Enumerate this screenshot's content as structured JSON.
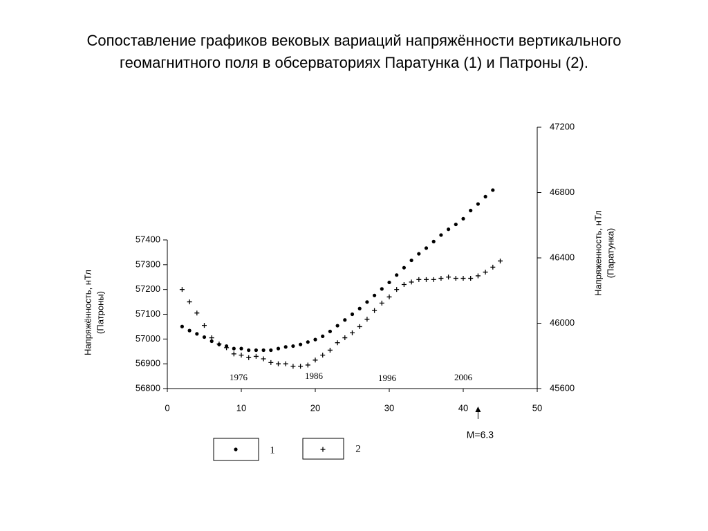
{
  "chart_data": {
    "type": "scatter",
    "title": [
      "Сопоставление графиков вековых вариаций напряжённости вертикального",
      "геомагнитного поля в обсерваториях Паратунка (1) и Патроны (2)."
    ],
    "ylabel": [
      "Напряжённость, нТл",
      "(Патроны)"
    ],
    "y2label": [
      "Напряженность, нТл",
      "(Паратунка)"
    ],
    "xlim": [
      0,
      50
    ],
    "xticks": [
      0,
      10,
      20,
      30,
      40,
      50
    ],
    "ylim": [
      56800,
      57400
    ],
    "yticks": [
      56800,
      56900,
      57000,
      57100,
      57200,
      57300,
      57400
    ],
    "y2lim": [
      45600,
      47200
    ],
    "y2ticks": [
      45600,
      46000,
      46400,
      46800,
      47200
    ],
    "annotations": [
      "1976",
      "1986",
      "1996",
      "2006"
    ],
    "event": {
      "label": "M=6.3",
      "x": 42
    },
    "series": [
      {
        "name": "1",
        "color": "#000000",
        "marker": "dot",
        "axis": "y2",
        "x": [
          2,
          3,
          4,
          5,
          6,
          7,
          8,
          9,
          10,
          11,
          12,
          13,
          14,
          15,
          16,
          17,
          18,
          19,
          20,
          21,
          22,
          23,
          24,
          25,
          26,
          27,
          28,
          29,
          30,
          31,
          32,
          33,
          34,
          35,
          36,
          37,
          38,
          39,
          40,
          41,
          42,
          43,
          44
        ],
        "values": [
          45980,
          45955,
          45935,
          45915,
          45890,
          45870,
          45860,
          45845,
          45845,
          45835,
          45835,
          45835,
          45835,
          45845,
          45855,
          45860,
          45870,
          45885,
          45900,
          45920,
          45950,
          45985,
          46020,
          46055,
          46090,
          46130,
          46170,
          46210,
          46250,
          46295,
          46340,
          46385,
          46425,
          46460,
          46500,
          46540,
          46575,
          46605,
          46640,
          46690,
          46730,
          46775,
          46815
        ]
      },
      {
        "name": "2",
        "color": "#000000",
        "marker": "plus",
        "x": [
          2,
          3,
          4,
          5,
          6,
          7,
          8,
          9,
          10,
          11,
          12,
          13,
          14,
          15,
          16,
          17,
          18,
          19,
          20,
          21,
          22,
          23,
          24,
          25,
          26,
          27,
          28,
          29,
          30,
          31,
          32,
          33,
          34,
          35,
          36,
          37,
          38,
          39,
          40,
          41,
          42,
          43,
          44,
          45
        ],
        "values": [
          57200,
          57150,
          57105,
          57055,
          57005,
          56980,
          56965,
          56940,
          56935,
          56925,
          56930,
          56920,
          56905,
          56900,
          56900,
          56890,
          56890,
          56895,
          56915,
          56935,
          56955,
          56985,
          57005,
          57025,
          57050,
          57080,
          57115,
          57145,
          57170,
          57200,
          57220,
          57230,
          57240,
          57240,
          57240,
          57245,
          57250,
          57245,
          57245,
          57245,
          57255,
          57270,
          57290,
          57315
        ]
      }
    ]
  }
}
